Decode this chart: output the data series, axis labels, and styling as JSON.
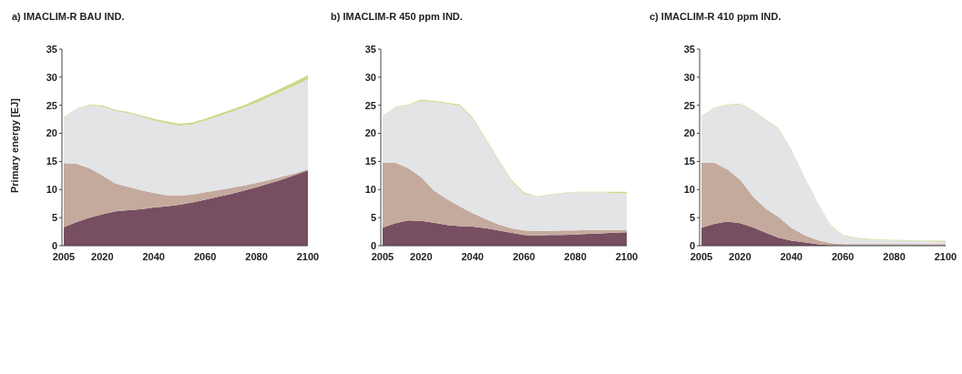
{
  "chart_data": [
    {
      "type": "area",
      "title": "a) IMACLIM-R BAU IND.",
      "ylabel": "Primary energy [EJ]",
      "stacked": true,
      "x": [
        2005,
        2010,
        2015,
        2020,
        2025,
        2030,
        2035,
        2040,
        2045,
        2050,
        2055,
        2060,
        2065,
        2070,
        2075,
        2080,
        2085,
        2090,
        2095,
        2100
      ],
      "xlim": [
        2005,
        2100
      ],
      "xticks": [
        2005,
        2020,
        2040,
        2060,
        2080,
        2100
      ],
      "ylim": [
        0,
        35
      ],
      "yticks": [
        0,
        5,
        10,
        15,
        20,
        25,
        30,
        35
      ],
      "series": [
        {
          "color": "#774f60",
          "values": [
            3.3,
            4.2,
            5.0,
            5.6,
            6.1,
            6.3,
            6.5,
            6.8,
            7.0,
            7.3,
            7.7,
            8.2,
            8.7,
            9.2,
            9.8,
            10.4,
            11.1,
            11.8,
            12.6,
            13.4
          ]
        },
        {
          "color": "#c4aa9d",
          "values": [
            11.4,
            10.4,
            8.8,
            6.9,
            5.0,
            4.2,
            3.4,
            2.6,
            2.0,
            1.6,
            1.4,
            1.3,
            1.2,
            1.1,
            0.9,
            0.8,
            0.6,
            0.5,
            0.3,
            0.2
          ]
        },
        {
          "color": "#e3e4e6",
          "values": [
            8.1,
            9.7,
            11.2,
            12.3,
            12.9,
            13.1,
            13.1,
            12.9,
            12.8,
            12.5,
            12.5,
            12.8,
            13.1,
            13.5,
            13.9,
            14.3,
            14.8,
            15.2,
            15.6,
            16.0
          ]
        },
        {
          "color": "#c9d98a",
          "values": [
            0.1,
            0.1,
            0.1,
            0.2,
            0.2,
            0.2,
            0.2,
            0.3,
            0.3,
            0.3,
            0.3,
            0.3,
            0.4,
            0.4,
            0.4,
            0.5,
            0.5,
            0.6,
            0.7,
            0.8
          ]
        }
      ]
    },
    {
      "type": "area",
      "title": "b) IMACLIM-R 450 ppm IND.",
      "stacked": true,
      "x": [
        2005,
        2010,
        2015,
        2020,
        2025,
        2030,
        2035,
        2040,
        2045,
        2050,
        2055,
        2060,
        2065,
        2070,
        2075,
        2080,
        2085,
        2090,
        2095,
        2100
      ],
      "xlim": [
        2005,
        2100
      ],
      "xticks": [
        2005,
        2020,
        2040,
        2060,
        2080,
        2100
      ],
      "ylim": [
        0,
        35
      ],
      "yticks": [
        0,
        5,
        10,
        15,
        20,
        25,
        30,
        35
      ],
      "series": [
        {
          "color": "#774f60",
          "values": [
            3.2,
            4.0,
            4.5,
            4.4,
            4.1,
            3.7,
            3.5,
            3.4,
            3.1,
            2.7,
            2.3,
            1.9,
            1.8,
            1.9,
            1.9,
            2.0,
            2.1,
            2.2,
            2.3,
            2.4
          ]
        },
        {
          "color": "#c4aa9d",
          "values": [
            11.6,
            10.8,
            9.3,
            7.8,
            5.7,
            4.6,
            3.5,
            2.4,
            1.7,
            1.1,
            0.8,
            0.8,
            0.8,
            0.7,
            0.8,
            0.7,
            0.7,
            0.6,
            0.5,
            0.4
          ]
        },
        {
          "color": "#e3e4e6",
          "values": [
            8.2,
            9.8,
            11.2,
            13.6,
            15.8,
            17.0,
            17.9,
            16.9,
            14.2,
            11.4,
            8.5,
            6.6,
            6.1,
            6.4,
            6.6,
            6.8,
            6.7,
            6.7,
            6.6,
            6.5
          ]
        },
        {
          "color": "#c9d98a",
          "values": [
            0.1,
            0.1,
            0.1,
            0.2,
            0.2,
            0.2,
            0.2,
            0.2,
            0.2,
            0.2,
            0.2,
            0.2,
            0.1,
            0.1,
            0.1,
            0.1,
            0.1,
            0.1,
            0.2,
            0.3
          ]
        }
      ]
    },
    {
      "type": "area",
      "title": "c) IMACLIM-R 410 ppm IND.",
      "stacked": true,
      "x": [
        2005,
        2010,
        2015,
        2020,
        2025,
        2030,
        2035,
        2040,
        2045,
        2050,
        2055,
        2060,
        2065,
        2070,
        2075,
        2080,
        2085,
        2090,
        2095,
        2100
      ],
      "xlim": [
        2005,
        2100
      ],
      "xticks": [
        2005,
        2020,
        2040,
        2060,
        2080,
        2100
      ],
      "ylim": [
        0,
        35
      ],
      "yticks": [
        0,
        5,
        10,
        15,
        20,
        25,
        30,
        35
      ],
      "series": [
        {
          "color": "#774f60",
          "values": [
            3.2,
            3.9,
            4.3,
            4.0,
            3.3,
            2.3,
            1.4,
            0.9,
            0.6,
            0.3,
            0.1,
            0.1,
            0.1,
            0.1,
            0.1,
            0.1,
            0.1,
            0.1,
            0.1,
            0.1
          ]
        },
        {
          "color": "#c4aa9d",
          "values": [
            11.6,
            10.9,
            9.3,
            7.8,
            5.5,
            4.3,
            3.7,
            2.3,
            1.3,
            0.7,
            0.4,
            0.2,
            0.2,
            0.2,
            0.2,
            0.2,
            0.2,
            0.2,
            0.2,
            0.2
          ]
        },
        {
          "color": "#e3e4e6",
          "values": [
            8.2,
            9.7,
            11.4,
            13.4,
            15.2,
            15.8,
            15.7,
            13.8,
            10.3,
            6.7,
            3.2,
            1.5,
            1.0,
            0.8,
            0.7,
            0.6,
            0.6,
            0.5,
            0.5,
            0.4
          ]
        },
        {
          "color": "#c9d98a",
          "values": [
            0.1,
            0.1,
            0.1,
            0.1,
            0.1,
            0.1,
            0.1,
            0.1,
            0.1,
            0.1,
            0.1,
            0.1,
            0.1,
            0.1,
            0.1,
            0.1,
            0.1,
            0.1,
            0.1,
            0.2
          ]
        }
      ]
    }
  ]
}
